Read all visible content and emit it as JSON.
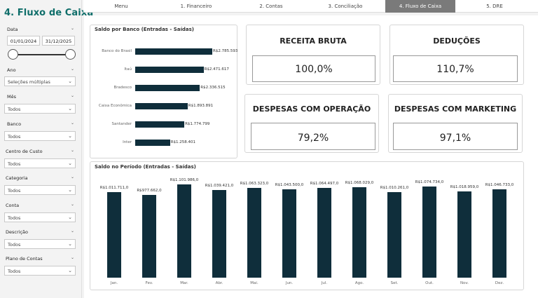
{
  "page_title": "4. Fluxo de Caixa",
  "nav": {
    "tabs": [
      {
        "label": "Menu"
      },
      {
        "label": "1. Financeiro"
      },
      {
        "label": "2. Contas"
      },
      {
        "label": "3. Conciliação"
      },
      {
        "label": "4. Fluxo de Caixa",
        "active": true
      },
      {
        "label": "5. DRE"
      }
    ]
  },
  "filters": {
    "data": {
      "label": "Data",
      "start": "01/01/2024",
      "end": "31/12/2025"
    },
    "ano": {
      "label": "Ano",
      "value": "Seleções múltiplas"
    },
    "mes": {
      "label": "Mês",
      "value": "Todos"
    },
    "banco": {
      "label": "Banco",
      "value": "Todos"
    },
    "centro_custo": {
      "label": "Centro de Custo",
      "value": "Todos"
    },
    "categoria": {
      "label": "Categoria",
      "value": "Todos"
    },
    "conta": {
      "label": "Conta",
      "value": "Todos"
    },
    "descricao": {
      "label": "Descrição",
      "value": "Todos"
    },
    "plano_contas": {
      "label": "Plano de Contas",
      "value": "Todos"
    }
  },
  "kpis": [
    {
      "title": "RECEITA BRUTA",
      "value": "100,0%"
    },
    {
      "title": "DEDUÇÕES",
      "value": "110,7%"
    },
    {
      "title": "DESPESAS COM OPERAÇÃO",
      "value": "79,2%"
    },
    {
      "title": "DESPESAS COM MARKETING",
      "value": "97,1%"
    }
  ],
  "colors": {
    "accent": "#0f6e6a",
    "bar": "#0f2e3b",
    "active_tab": "#7a7a7a"
  },
  "chart_data": [
    {
      "type": "bar",
      "orientation": "horizontal",
      "title": "Saldo por Banco (Entradas - Saídas)",
      "categories": [
        "Banco do Brasil",
        "Itaú",
        "Bradesco",
        "Caixa Econômica",
        "Santander",
        "Inter"
      ],
      "values": [
        2785593,
        2471617,
        2336515,
        1893891,
        1774799,
        1258401
      ],
      "labels": [
        "R$2.785.593",
        "R$2.471.617",
        "R$2.336.515",
        "R$1.893.891",
        "R$1.774.799",
        "R$1.258.401"
      ],
      "xlim": [
        0,
        2785593
      ]
    },
    {
      "type": "bar",
      "title": "Saldo no Período (Entradas - Saídas)",
      "categories": [
        "Jan.",
        "Fev.",
        "Mar.",
        "Abr.",
        "Mai.",
        "Jun.",
        "Jul.",
        "Ago.",
        "Set.",
        "Out.",
        "Nov.",
        "Dez."
      ],
      "values": [
        1011711.0,
        977662.0,
        1101986.0,
        1039421.0,
        1063323.0,
        1043500.0,
        1064497.0,
        1068029.0,
        1010261.0,
        1074734.0,
        1018959.0,
        1046733.0
      ],
      "labels": [
        "R$1.011.711,0",
        "R$977.662,0",
        "R$1.101.986,0",
        "R$1.039.421,0",
        "R$1.063.323,0",
        "R$1.043.500,0",
        "R$1.064.497,0",
        "R$1.068.029,0",
        "R$1.010.261,0",
        "R$1.074.734,0",
        "R$1.018.959,0",
        "R$1.046.733,0"
      ],
      "ylim": [
        0,
        1101986
      ]
    }
  ]
}
